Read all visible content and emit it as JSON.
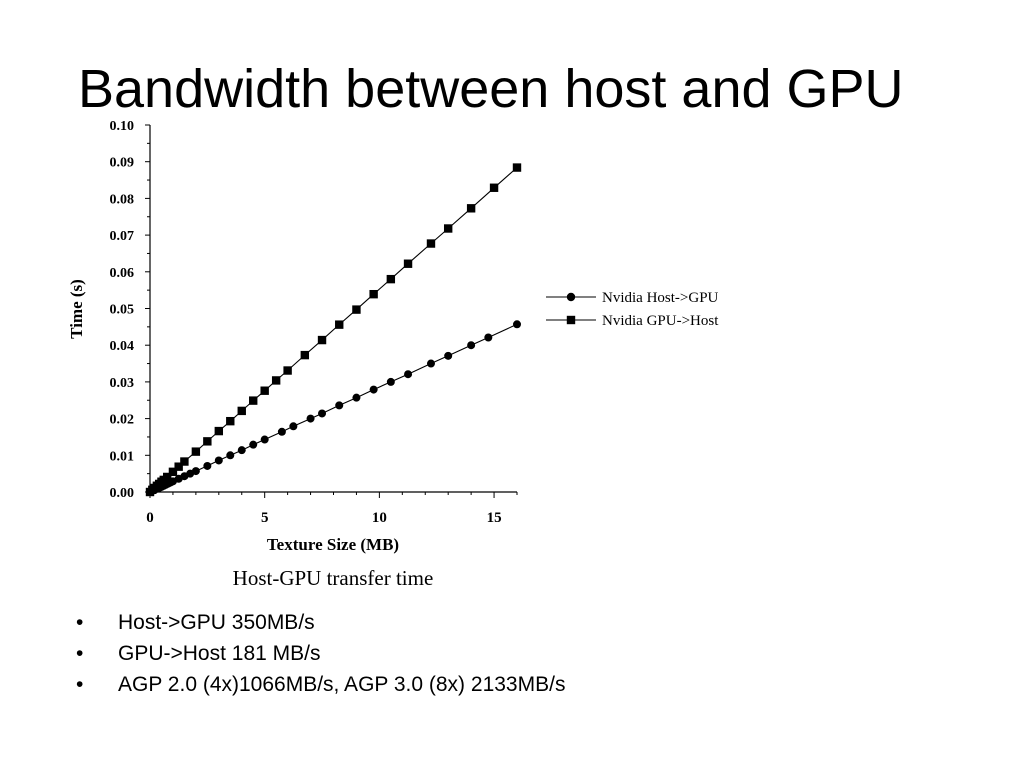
{
  "slide": {
    "title": "Bandwidth between host and GPU"
  },
  "chart_data": {
    "type": "line",
    "title": "",
    "caption": "Host-GPU transfer time",
    "xlabel": "Texture Size (MB)",
    "ylabel": "Time (s)",
    "xlim": [
      0,
      16
    ],
    "ylim": [
      0.0,
      0.1
    ],
    "x_ticks": [
      0,
      5,
      10,
      15
    ],
    "x_tick_labels": [
      "0",
      "5",
      "10",
      "15"
    ],
    "y_ticks": [
      0.0,
      0.01,
      0.02,
      0.03,
      0.04,
      0.05,
      0.06,
      0.07,
      0.08,
      0.09,
      0.1
    ],
    "y_tick_labels": [
      "0.00",
      "0.01",
      "0.02",
      "0.03",
      "0.04",
      "0.05",
      "0.06",
      "0.07",
      "0.08",
      "0.09",
      "0.10"
    ],
    "grid": false,
    "legend_position": "right",
    "series": [
      {
        "name": "Nvidia Host->GPU",
        "marker": "circle",
        "color": "#000000",
        "x": [
          0,
          0.1,
          0.2,
          0.3,
          0.4,
          0.5,
          0.6,
          0.7,
          0.8,
          0.9,
          1.0,
          1.25,
          1.5,
          1.75,
          2.0,
          2.5,
          3.0,
          3.5,
          4.0,
          4.5,
          5.0,
          5.75,
          6.25,
          7.0,
          7.5,
          8.25,
          9.0,
          9.75,
          10.5,
          11.25,
          12.25,
          13.0,
          14.0,
          14.75,
          16.0
        ],
        "y": [
          0.0,
          0.0003,
          0.0006,
          0.0009,
          0.0011,
          0.0014,
          0.0017,
          0.002,
          0.0023,
          0.0026,
          0.0029,
          0.0036,
          0.0043,
          0.005,
          0.0057,
          0.0071,
          0.0086,
          0.01,
          0.0114,
          0.0129,
          0.0143,
          0.0164,
          0.0179,
          0.02,
          0.0214,
          0.0236,
          0.0257,
          0.0279,
          0.03,
          0.0321,
          0.035,
          0.0371,
          0.04,
          0.0421,
          0.0457
        ]
      },
      {
        "name": "Nvidia GPU->Host",
        "marker": "square",
        "color": "#000000",
        "x": [
          0,
          0.1,
          0.2,
          0.3,
          0.4,
          0.5,
          0.6,
          0.75,
          1.0,
          1.25,
          1.5,
          2.0,
          2.5,
          3.0,
          3.5,
          4.0,
          4.5,
          5.0,
          5.5,
          6.0,
          6.75,
          7.5,
          8.25,
          9.0,
          9.75,
          10.5,
          11.25,
          12.25,
          13.0,
          14.0,
          15.0,
          16.0
        ],
        "y": [
          0.0,
          0.0006,
          0.0011,
          0.0017,
          0.0022,
          0.0028,
          0.0033,
          0.0041,
          0.0055,
          0.0069,
          0.0083,
          0.011,
          0.0138,
          0.0166,
          0.0193,
          0.0221,
          0.0249,
          0.0276,
          0.0304,
          0.0331,
          0.0373,
          0.0414,
          0.0456,
          0.0497,
          0.0539,
          0.058,
          0.0622,
          0.0677,
          0.0718,
          0.0773,
          0.0829,
          0.0884
        ]
      }
    ]
  },
  "bullets": [
    "Host->GPU 350MB/s",
    "GPU->Host 181 MB/s",
    "AGP 2.0 (4x)1066MB/s, AGP 3.0 (8x) 2133MB/s"
  ],
  "bullet_symbol": "•"
}
